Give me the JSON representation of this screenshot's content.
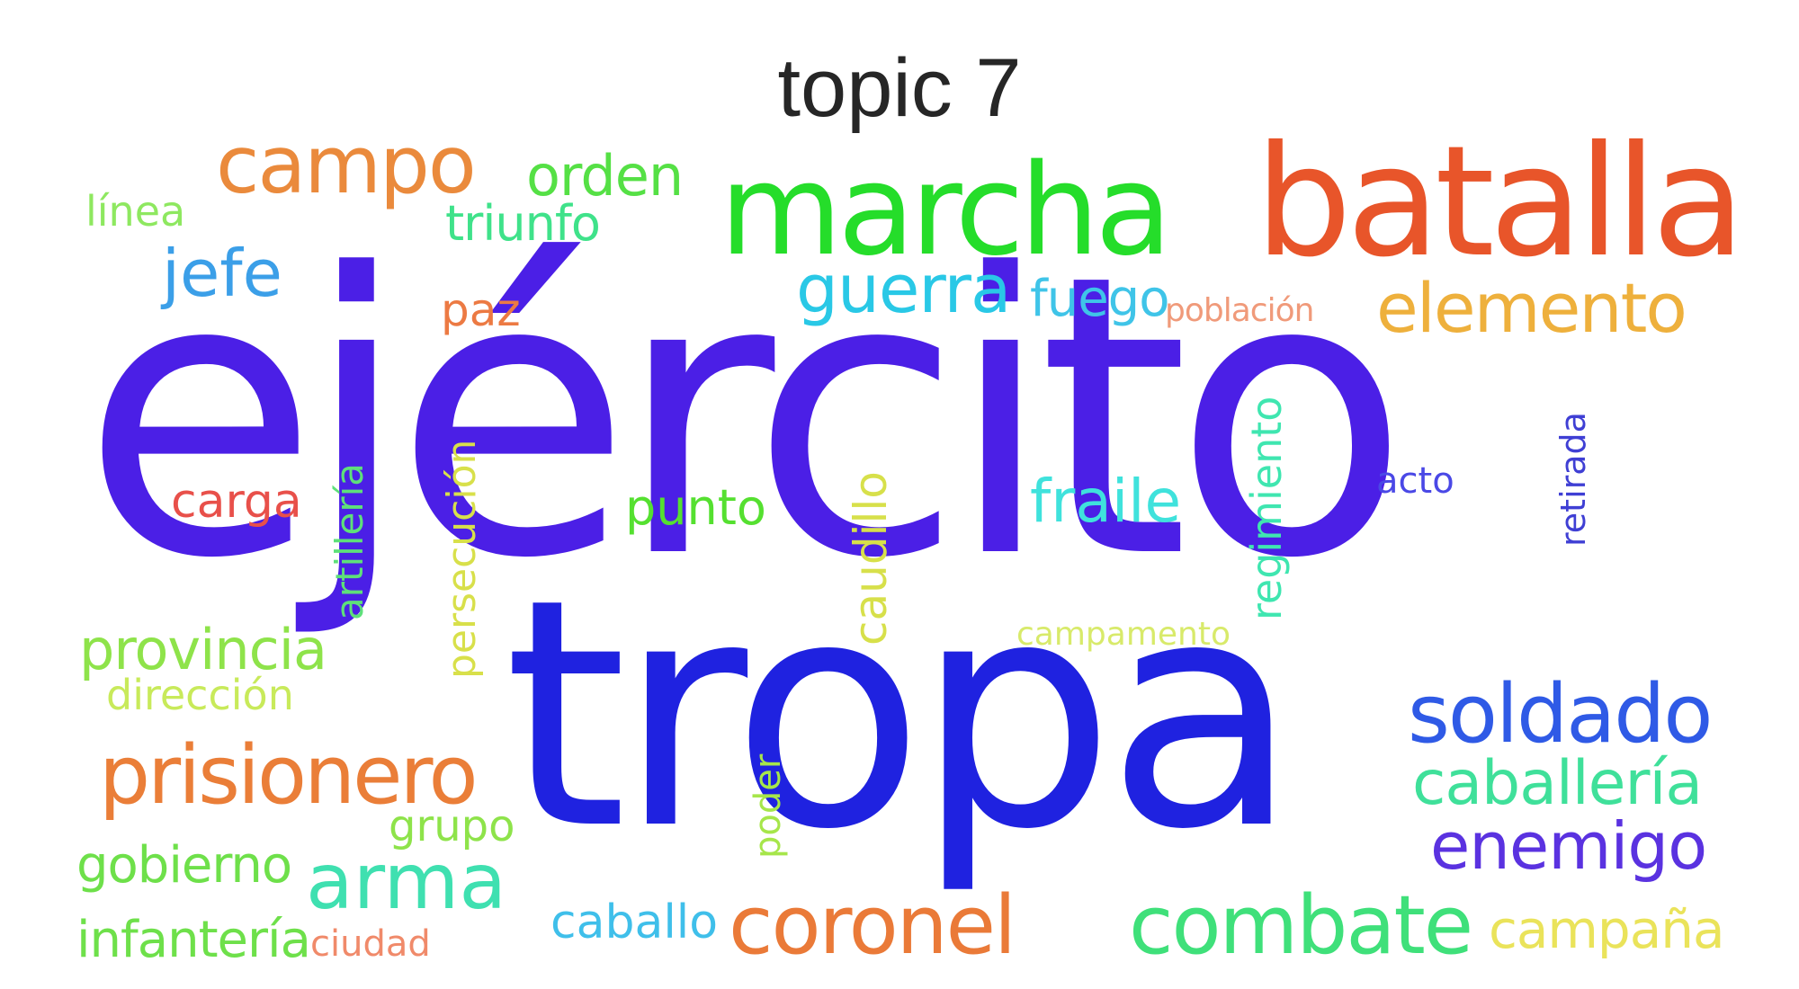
{
  "title": "topic 7",
  "words": [
    {
      "text": "ejército",
      "color": "#4b1fe6"
    },
    {
      "text": "tropa",
      "color": "#1f22e0"
    },
    {
      "text": "batalla",
      "color": "#e8552a"
    },
    {
      "text": "marcha",
      "color": "#25dd2a"
    },
    {
      "text": "campo",
      "color": "#ea8a3c"
    },
    {
      "text": "orden",
      "color": "#55e045"
    },
    {
      "text": "línea",
      "color": "#8ee860"
    },
    {
      "text": "triunfo",
      "color": "#3fe28a"
    },
    {
      "text": "jefe",
      "color": "#3b9fe8"
    },
    {
      "text": "guerra",
      "color": "#29c8e6"
    },
    {
      "text": "fuego",
      "color": "#3fc4e8"
    },
    {
      "text": "población",
      "color": "#f09a7a"
    },
    {
      "text": "elemento",
      "color": "#eeb03c"
    },
    {
      "text": "paz",
      "color": "#ec7a43"
    },
    {
      "text": "carga",
      "color": "#e8504a"
    },
    {
      "text": "artillería",
      "color": "#5ee07a"
    },
    {
      "text": "persecución",
      "color": "#d8e04a"
    },
    {
      "text": "punto",
      "color": "#55e030"
    },
    {
      "text": "caudillo",
      "color": "#d7e04a"
    },
    {
      "text": "fraile",
      "color": "#3fe2dc"
    },
    {
      "text": "regimiento",
      "color": "#3fe6b0"
    },
    {
      "text": "acto",
      "color": "#4a48e6"
    },
    {
      "text": "retirada",
      "color": "#3f3fd4"
    },
    {
      "text": "campamento",
      "color": "#d8ea6a"
    },
    {
      "text": "provincia",
      "color": "#8ee34a"
    },
    {
      "text": "dirección",
      "color": "#c8ea5a"
    },
    {
      "text": "soldado",
      "color": "#2f5ae6"
    },
    {
      "text": "prisionero",
      "color": "#ea7e38"
    },
    {
      "text": "caballería",
      "color": "#3fe09a"
    },
    {
      "text": "enemigo",
      "color": "#5a32e0"
    },
    {
      "text": "grupo",
      "color": "#8ee34a"
    },
    {
      "text": "arma",
      "color": "#3fe0b0"
    },
    {
      "text": "gobierno",
      "color": "#6ee04a"
    },
    {
      "text": "poder",
      "color": "#a6e64a"
    },
    {
      "text": "coronel",
      "color": "#ea7a38"
    },
    {
      "text": "combate",
      "color": "#3fe07a"
    },
    {
      "text": "campaña",
      "color": "#eae35a"
    },
    {
      "text": "infantería",
      "color": "#6ee04a"
    },
    {
      "text": "ciudad",
      "color": "#f08a6a"
    },
    {
      "text": "caballo",
      "color": "#3fbfea"
    }
  ]
}
